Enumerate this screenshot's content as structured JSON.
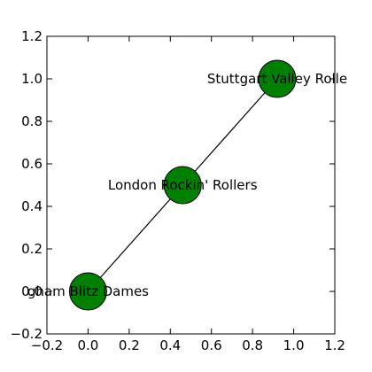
{
  "chart_data": {
    "type": "network",
    "xlim": [
      -0.2,
      1.2
    ],
    "ylim": [
      -0.2,
      1.2
    ],
    "xticks": [
      -0.2,
      0.0,
      0.2,
      0.4,
      0.6,
      0.8,
      1.0,
      1.2
    ],
    "yticks": [
      -0.2,
      0.0,
      0.2,
      0.4,
      0.6,
      0.8,
      1.0,
      1.2
    ],
    "xtick_labels": [
      "−0.2",
      "0.0",
      "0.2",
      "0.4",
      "0.6",
      "0.8",
      "1.0",
      "1.2"
    ],
    "ytick_labels": [
      "−0.2",
      "0.0",
      "0.2",
      "0.4",
      "0.6",
      "0.8",
      "1.0",
      "1.2"
    ],
    "grid": false,
    "node_color": "#008000",
    "edge_color": "#000000",
    "nodes": [
      {
        "label": "gham Blitz Dames",
        "x": 0.0,
        "y": 0.0
      },
      {
        "label": "London Rockin' Rollers",
        "x": 0.46,
        "y": 0.5
      },
      {
        "label": "Stuttgart Valley Rolle",
        "x": 0.92,
        "y": 1.0
      }
    ],
    "edges": [
      [
        0,
        1
      ],
      [
        1,
        2
      ]
    ]
  }
}
